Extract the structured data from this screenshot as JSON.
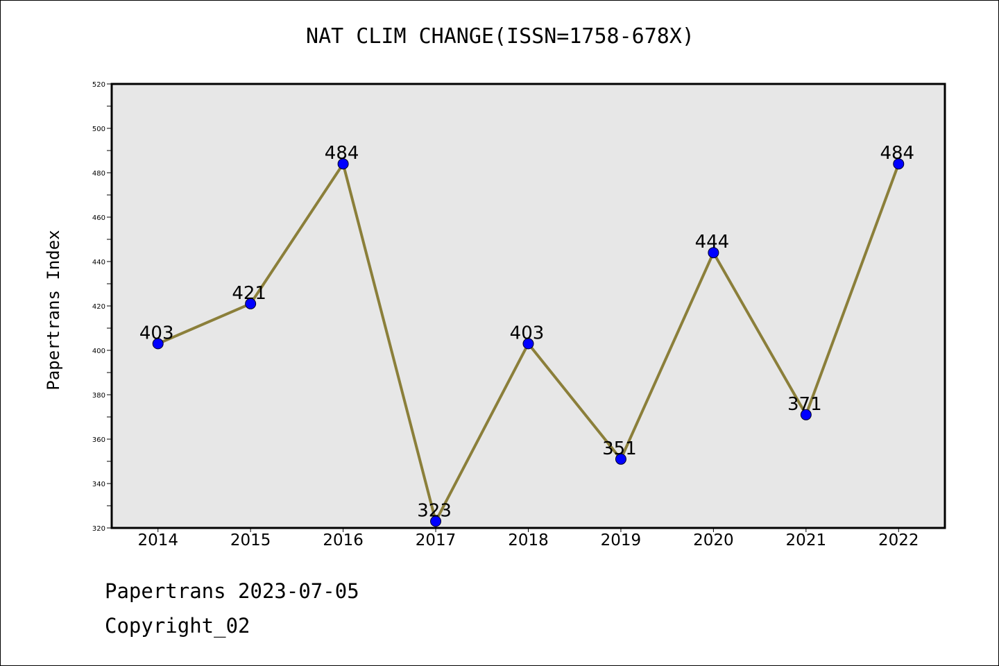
{
  "footer": {
    "line1": "Papertrans 2023-07-05",
    "line2": "Copyright_02"
  },
  "colors": {
    "plot_background": "#e7e7e7",
    "line": "#8b7f3a",
    "marker": "#0000ff",
    "frame": "#000000"
  },
  "chart_data": {
    "type": "line",
    "title": "NAT CLIM CHANGE(ISSN=1758-678X)",
    "xlabel": "",
    "ylabel": "Papertrans Index",
    "categories": [
      "2014",
      "2015",
      "2016",
      "2017",
      "2018",
      "2019",
      "2020",
      "2021",
      "2022"
    ],
    "series": [
      {
        "values": [
          403,
          421,
          484,
          323,
          403,
          351,
          444,
          371,
          484
        ]
      }
    ],
    "data_labels": [
      "403",
      "421",
      "484",
      "323",
      "403",
      "351",
      "444",
      "371",
      "484"
    ],
    "ylim": [
      320,
      520
    ],
    "yticks": [
      320,
      340,
      360,
      380,
      400,
      420,
      440,
      460,
      480,
      500,
      520
    ],
    "grid": false,
    "legend": "none"
  }
}
